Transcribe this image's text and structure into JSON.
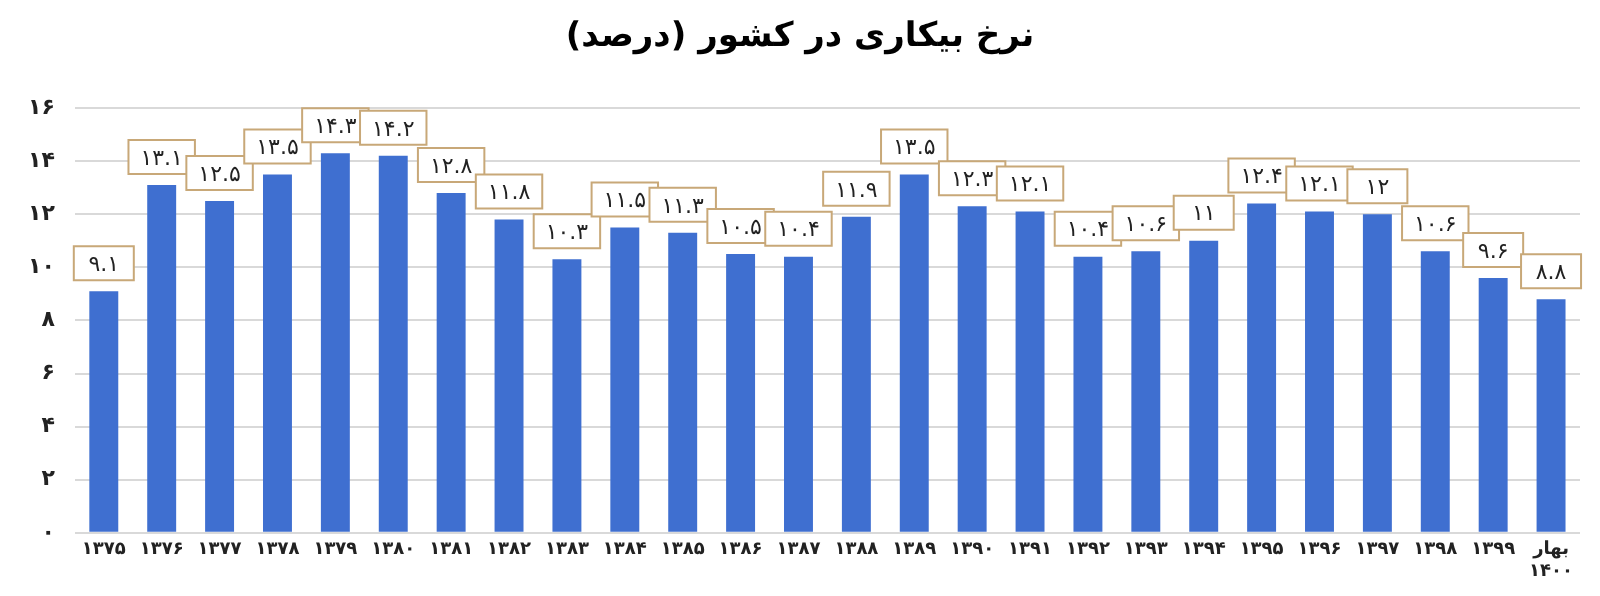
{
  "chart_data": {
    "type": "bar",
    "title": "نرخ بیکاری در کشور (درصد)",
    "categories": [
      "۱۳۷۵",
      "۱۳۷۶",
      "۱۳۷۷",
      "۱۳۷۸",
      "۱۳۷۹",
      "۱۳۸۰",
      "۱۳۸۱",
      "۱۳۸۲",
      "۱۳۸۳",
      "۱۳۸۴",
      "۱۳۸۵",
      "۱۳۸۶",
      "۱۳۸۷",
      "۱۳۸۸",
      "۱۳۸۹",
      "۱۳۹۰",
      "۱۳۹۱",
      "۱۳۹۲",
      "۱۳۹۳",
      "۱۳۹۴",
      "۱۳۹۵",
      "۱۳۹۶",
      "۱۳۹۷",
      "۱۳۹۸",
      "۱۳۹۹",
      "بهار ۱۴۰۰"
    ],
    "values": [
      9.1,
      13.1,
      12.5,
      13.5,
      14.3,
      14.2,
      12.8,
      11.8,
      10.3,
      11.5,
      11.3,
      10.5,
      10.4,
      11.9,
      13.5,
      12.3,
      12.1,
      10.4,
      10.6,
      11,
      12.4,
      12.1,
      12,
      10.6,
      9.6,
      8.8
    ],
    "value_labels": [
      "۹.۱",
      "۱۳.۱",
      "۱۲.۵",
      "۱۳.۵",
      "۱۴.۳",
      "۱۴.۲",
      "۱۲.۸",
      "۱۱.۸",
      "۱۰.۳",
      "۱۱.۵",
      "۱۱.۳",
      "۱۰.۵",
      "۱۰.۴",
      "۱۱.۹",
      "۱۳.۵",
      "۱۲.۳",
      "۱۲.۱",
      "۱۰.۴",
      "۱۰.۶",
      "۱۱",
      "۱۲.۴",
      "۱۲.۱",
      "۱۲",
      "۱۰.۶",
      "۹.۶",
      "۸.۸"
    ],
    "color": "#3f6fd0",
    "ylim": [
      0,
      16
    ],
    "yticks": [
      {
        "value": 0,
        "label": "۰"
      },
      {
        "value": 2,
        "label": "۲"
      },
      {
        "value": 4,
        "label": "۴"
      },
      {
        "value": 6,
        "label": "۶"
      },
      {
        "value": 8,
        "label": "۸"
      },
      {
        "value": 10,
        "label": "۱۰"
      },
      {
        "value": 12,
        "label": "۱۲"
      },
      {
        "value": 14,
        "label": "۱۴"
      },
      {
        "value": 16,
        "label": "۱۶"
      }
    ],
    "grid": "y"
  }
}
